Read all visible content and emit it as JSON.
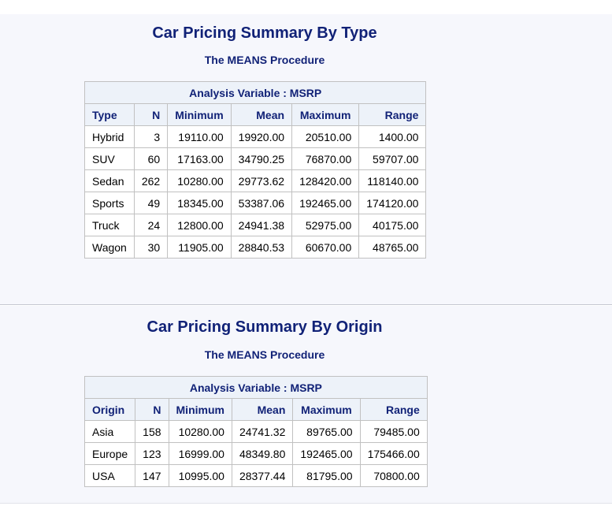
{
  "reports": [
    {
      "title": "Car Pricing Summary By Type",
      "procedure": "The MEANS Procedure",
      "analysis_variable": "Analysis Variable : MSRP",
      "columns": [
        "Type",
        "N",
        "Minimum",
        "Mean",
        "Maximum",
        "Range"
      ],
      "rows": [
        [
          "Hybrid",
          "3",
          "19110.00",
          "19920.00",
          "20510.00",
          "1400.00"
        ],
        [
          "SUV",
          "60",
          "17163.00",
          "34790.25",
          "76870.00",
          "59707.00"
        ],
        [
          "Sedan",
          "262",
          "10280.00",
          "29773.62",
          "128420.00",
          "118140.00"
        ],
        [
          "Sports",
          "49",
          "18345.00",
          "53387.06",
          "192465.00",
          "174120.00"
        ],
        [
          "Truck",
          "24",
          "12800.00",
          "24941.38",
          "52975.00",
          "40175.00"
        ],
        [
          "Wagon",
          "30",
          "11905.00",
          "28840.53",
          "60670.00",
          "48765.00"
        ]
      ]
    },
    {
      "title": "Car Pricing Summary By Origin",
      "procedure": "The MEANS Procedure",
      "analysis_variable": "Analysis Variable : MSRP",
      "columns": [
        "Origin",
        "N",
        "Minimum",
        "Mean",
        "Maximum",
        "Range"
      ],
      "rows": [
        [
          "Asia",
          "158",
          "10280.00",
          "24741.32",
          "89765.00",
          "79485.00"
        ],
        [
          "Europe",
          "123",
          "16999.00",
          "48349.80",
          "192465.00",
          "175466.00"
        ],
        [
          "USA",
          "147",
          "10995.00",
          "28377.44",
          "81795.00",
          "70800.00"
        ]
      ]
    }
  ],
  "colors": {
    "heading_text": "#112277",
    "header_background": "#edf2f9",
    "panel_background": "#f6f7fc",
    "border": "#c1c1c1"
  }
}
